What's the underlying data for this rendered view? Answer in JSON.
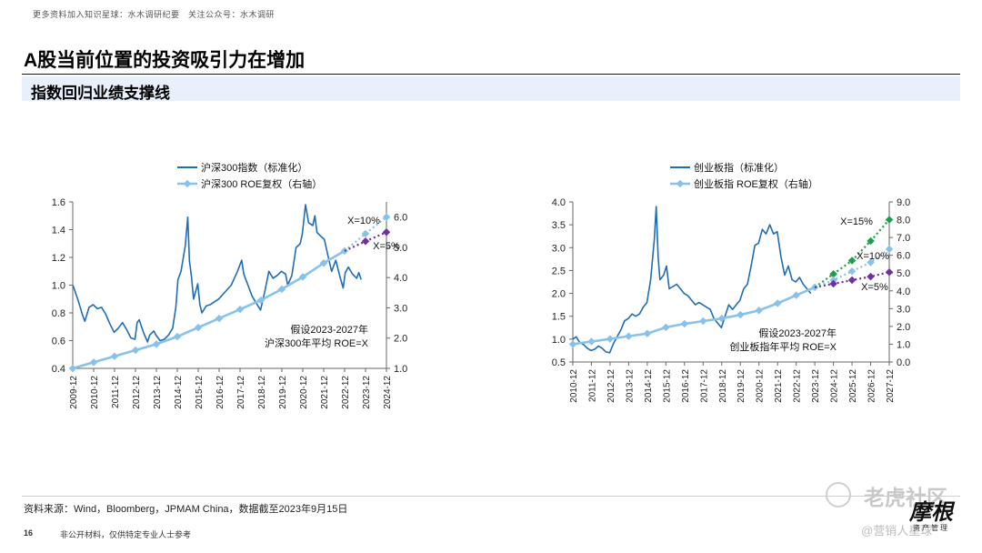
{
  "header_note": "更多资料加入知识星球：水木调研纪要　关注公众号：水木调研",
  "title": "A股当前位置的投资吸引力在增加",
  "subtitle": "指数回归业绩支撑线",
  "footer": {
    "source": "资料来源：Wind，Bloomberg，JPMAM China，数据截至2023年9月15日",
    "page_number": "16",
    "disclaimer": "非公开材料，仅供特定专业人士参考",
    "watermark": "老虎社区",
    "watermark_sub": "@营销人星球",
    "logo_text": "摩根",
    "logo_sub": "资产管理"
  },
  "colors": {
    "index": "#1f6db5",
    "roe": "#87c2ea",
    "x10": "#87c2ea",
    "x5": "#7030a0",
    "x15": "#1aa04a",
    "axis": "#666666"
  },
  "chart_data": [
    {
      "type": "line",
      "title": "",
      "legend": [
        "沪深300指数（标准化）",
        "沪深300 ROE复权（右轴）"
      ],
      "x_ticks": [
        "2009-12",
        "2010-12",
        "2011-12",
        "2012-12",
        "2013-12",
        "2014-12",
        "2015-12",
        "2016-12",
        "2017-12",
        "2018-12",
        "2019-12",
        "2020-12",
        "2021-12",
        "2022-12",
        "2023-12",
        "2024-12"
      ],
      "xlim": [
        2009.92,
        2024.92
      ],
      "ylim_left": [
        0.4,
        1.6
      ],
      "y_ticks_left": [
        "0.4",
        "0.6",
        "0.8",
        "1.0",
        "1.2",
        "1.4",
        "1.6"
      ],
      "ylim_right": [
        1.0,
        6.5
      ],
      "y_ticks_right": [
        "1.0",
        "2.0",
        "3.0",
        "4.0",
        "5.0",
        "6.0"
      ],
      "index_series": [
        [
          2009.92,
          1.0
        ],
        [
          2010.0,
          0.97
        ],
        [
          2010.2,
          0.88
        ],
        [
          2010.4,
          0.78
        ],
        [
          2010.5,
          0.74
        ],
        [
          2010.7,
          0.84
        ],
        [
          2010.9,
          0.86
        ],
        [
          2011.1,
          0.83
        ],
        [
          2011.3,
          0.84
        ],
        [
          2011.5,
          0.79
        ],
        [
          2011.7,
          0.72
        ],
        [
          2011.9,
          0.66
        ],
        [
          2012.1,
          0.69
        ],
        [
          2012.3,
          0.73
        ],
        [
          2012.5,
          0.68
        ],
        [
          2012.7,
          0.62
        ],
        [
          2012.9,
          0.61
        ],
        [
          2013.0,
          0.73
        ],
        [
          2013.1,
          0.75
        ],
        [
          2013.3,
          0.66
        ],
        [
          2013.5,
          0.59
        ],
        [
          2013.6,
          0.64
        ],
        [
          2013.8,
          0.67
        ],
        [
          2013.9,
          0.64
        ],
        [
          2014.1,
          0.6
        ],
        [
          2014.3,
          0.61
        ],
        [
          2014.5,
          0.64
        ],
        [
          2014.7,
          0.69
        ],
        [
          2014.85,
          0.84
        ],
        [
          2014.95,
          1.04
        ],
        [
          2015.1,
          1.1
        ],
        [
          2015.3,
          1.28
        ],
        [
          2015.42,
          1.49
        ],
        [
          2015.5,
          1.18
        ],
        [
          2015.6,
          1.06
        ],
        [
          2015.7,
          0.9
        ],
        [
          2015.9,
          1.01
        ],
        [
          2016.0,
          0.86
        ],
        [
          2016.1,
          0.8
        ],
        [
          2016.3,
          0.85
        ],
        [
          2016.5,
          0.86
        ],
        [
          2016.7,
          0.88
        ],
        [
          2016.9,
          0.9
        ],
        [
          2017.2,
          0.95
        ],
        [
          2017.5,
          1.0
        ],
        [
          2017.8,
          1.1
        ],
        [
          2018.0,
          1.18
        ],
        [
          2018.1,
          1.08
        ],
        [
          2018.3,
          1.0
        ],
        [
          2018.5,
          0.92
        ],
        [
          2018.7,
          0.87
        ],
        [
          2018.9,
          0.82
        ],
        [
          2019.1,
          0.95
        ],
        [
          2019.3,
          1.1
        ],
        [
          2019.5,
          1.05
        ],
        [
          2019.7,
          1.07
        ],
        [
          2019.9,
          1.1
        ],
        [
          2020.1,
          1.08
        ],
        [
          2020.2,
          1.0
        ],
        [
          2020.4,
          1.07
        ],
        [
          2020.6,
          1.27
        ],
        [
          2020.8,
          1.3
        ],
        [
          2020.9,
          1.37
        ],
        [
          2021.05,
          1.58
        ],
        [
          2021.2,
          1.45
        ],
        [
          2021.4,
          1.43
        ],
        [
          2021.5,
          1.5
        ],
        [
          2021.6,
          1.38
        ],
        [
          2021.8,
          1.35
        ],
        [
          2021.95,
          1.33
        ],
        [
          2022.1,
          1.23
        ],
        [
          2022.3,
          1.1
        ],
        [
          2022.5,
          1.18
        ],
        [
          2022.7,
          1.06
        ],
        [
          2022.85,
          0.98
        ],
        [
          2022.95,
          1.09
        ],
        [
          2023.1,
          1.13
        ],
        [
          2023.3,
          1.08
        ],
        [
          2023.5,
          1.05
        ],
        [
          2023.6,
          1.09
        ],
        [
          2023.71,
          1.04
        ]
      ],
      "roe_series": [
        [
          2009.92,
          1.0
        ],
        [
          2010.92,
          1.2
        ],
        [
          2011.92,
          1.4
        ],
        [
          2012.92,
          1.6
        ],
        [
          2013.92,
          1.8
        ],
        [
          2014.92,
          2.05
        ],
        [
          2015.92,
          2.35
        ],
        [
          2016.92,
          2.65
        ],
        [
          2017.92,
          2.95
        ],
        [
          2018.92,
          3.25
        ],
        [
          2019.92,
          3.62
        ],
        [
          2020.92,
          4.02
        ],
        [
          2021.92,
          4.48
        ],
        [
          2022.92,
          4.88
        ]
      ],
      "scenarios": [
        {
          "label": "X=10%",
          "points": [
            [
              2022.92,
              4.88
            ],
            [
              2023.92,
              5.45
            ],
            [
              2024.92,
              6.0
            ]
          ]
        },
        {
          "label": "X=5%",
          "points": [
            [
              2022.92,
              4.88
            ],
            [
              2023.92,
              5.2
            ],
            [
              2024.92,
              5.5
            ]
          ]
        }
      ],
      "annotation": [
        "假设2023-2027年",
        "沪深300年平均 ROE=X"
      ]
    },
    {
      "type": "line",
      "title": "",
      "legend": [
        "创业板指（标准化）",
        "创业板指 ROE复权（右轴）"
      ],
      "x_ticks": [
        "2010-12",
        "2011-12",
        "2012-12",
        "2013-12",
        "2014-12",
        "2015-12",
        "2016-12",
        "2017-12",
        "2018-12",
        "2019-12",
        "2020-12",
        "2021-12",
        "2022-12",
        "2023-12",
        "2024-12",
        "2025-12",
        "2026-12",
        "2027-12"
      ],
      "xlim": [
        2010.92,
        2027.92
      ],
      "ylim_left": [
        0.5,
        4.0
      ],
      "y_ticks_left": [
        "0.5",
        "1.0",
        "1.5",
        "2.0",
        "2.5",
        "3.0",
        "3.5",
        "4.0"
      ],
      "ylim_right": [
        0.0,
        9.0
      ],
      "y_ticks_right": [
        "0.0",
        "1.0",
        "2.0",
        "3.0",
        "4.0",
        "5.0",
        "6.0",
        "7.0",
        "8.0",
        "9.0"
      ],
      "index_series": [
        [
          2010.92,
          1.0
        ],
        [
          2011.1,
          1.05
        ],
        [
          2011.3,
          0.92
        ],
        [
          2011.5,
          0.88
        ],
        [
          2011.7,
          0.8
        ],
        [
          2011.9,
          0.75
        ],
        [
          2012.1,
          0.78
        ],
        [
          2012.3,
          0.85
        ],
        [
          2012.5,
          0.8
        ],
        [
          2012.7,
          0.72
        ],
        [
          2012.9,
          0.7
        ],
        [
          2013.1,
          0.9
        ],
        [
          2013.3,
          1.05
        ],
        [
          2013.5,
          1.2
        ],
        [
          2013.7,
          1.4
        ],
        [
          2013.9,
          1.45
        ],
        [
          2014.1,
          1.55
        ],
        [
          2014.3,
          1.5
        ],
        [
          2014.5,
          1.55
        ],
        [
          2014.7,
          1.7
        ],
        [
          2014.9,
          1.8
        ],
        [
          2015.1,
          2.3
        ],
        [
          2015.3,
          3.2
        ],
        [
          2015.4,
          3.9
        ],
        [
          2015.5,
          2.8
        ],
        [
          2015.6,
          2.3
        ],
        [
          2015.8,
          2.4
        ],
        [
          2015.95,
          2.6
        ],
        [
          2016.1,
          2.1
        ],
        [
          2016.3,
          2.15
        ],
        [
          2016.5,
          2.2
        ],
        [
          2016.7,
          2.1
        ],
        [
          2016.9,
          2.0
        ],
        [
          2017.1,
          1.95
        ],
        [
          2017.3,
          1.85
        ],
        [
          2017.5,
          1.75
        ],
        [
          2017.7,
          1.8
        ],
        [
          2017.9,
          1.75
        ],
        [
          2018.1,
          1.7
        ],
        [
          2018.3,
          1.65
        ],
        [
          2018.5,
          1.45
        ],
        [
          2018.7,
          1.35
        ],
        [
          2018.9,
          1.25
        ],
        [
          2019.1,
          1.5
        ],
        [
          2019.3,
          1.75
        ],
        [
          2019.5,
          1.65
        ],
        [
          2019.7,
          1.75
        ],
        [
          2019.9,
          1.85
        ],
        [
          2020.1,
          2.1
        ],
        [
          2020.3,
          2.2
        ],
        [
          2020.5,
          2.6
        ],
        [
          2020.7,
          3.05
        ],
        [
          2020.9,
          3.1
        ],
        [
          2021.1,
          3.4
        ],
        [
          2021.3,
          3.3
        ],
        [
          2021.5,
          3.5
        ],
        [
          2021.7,
          3.3
        ],
        [
          2021.9,
          3.35
        ],
        [
          2022.1,
          2.8
        ],
        [
          2022.3,
          2.4
        ],
        [
          2022.5,
          2.6
        ],
        [
          2022.7,
          2.3
        ],
        [
          2022.9,
          2.25
        ],
        [
          2023.1,
          2.35
        ],
        [
          2023.3,
          2.2
        ],
        [
          2023.5,
          2.1
        ],
        [
          2023.71,
          2.0
        ]
      ],
      "roe_series": [
        [
          2010.92,
          1.0
        ],
        [
          2011.92,
          1.15
        ],
        [
          2012.92,
          1.3
        ],
        [
          2013.92,
          1.45
        ],
        [
          2014.92,
          1.6
        ],
        [
          2015.92,
          1.95
        ],
        [
          2016.92,
          2.15
        ],
        [
          2017.92,
          2.3
        ],
        [
          2018.92,
          2.45
        ],
        [
          2019.92,
          2.65
        ],
        [
          2020.92,
          2.9
        ],
        [
          2021.92,
          3.3
        ],
        [
          2022.92,
          3.75
        ],
        [
          2023.92,
          4.2
        ]
      ],
      "scenarios": [
        {
          "label": "X=15%",
          "points": [
            [
              2023.92,
              4.2
            ],
            [
              2024.92,
              4.95
            ],
            [
              2025.92,
              5.7
            ],
            [
              2026.92,
              6.8
            ],
            [
              2027.92,
              8.0
            ]
          ]
        },
        {
          "label": "X=10%",
          "points": [
            [
              2023.92,
              4.2
            ],
            [
              2024.92,
              4.6
            ],
            [
              2025.92,
              5.1
            ],
            [
              2026.92,
              5.6
            ],
            [
              2027.92,
              6.35
            ]
          ]
        },
        {
          "label": "X=5%",
          "points": [
            [
              2023.92,
              4.2
            ],
            [
              2024.92,
              4.4
            ],
            [
              2025.92,
              4.6
            ],
            [
              2026.92,
              4.8
            ],
            [
              2027.92,
              5.05
            ]
          ]
        }
      ],
      "annotation": [
        "假设2023-2027年",
        "创业板指年平均 ROE=X"
      ]
    }
  ]
}
